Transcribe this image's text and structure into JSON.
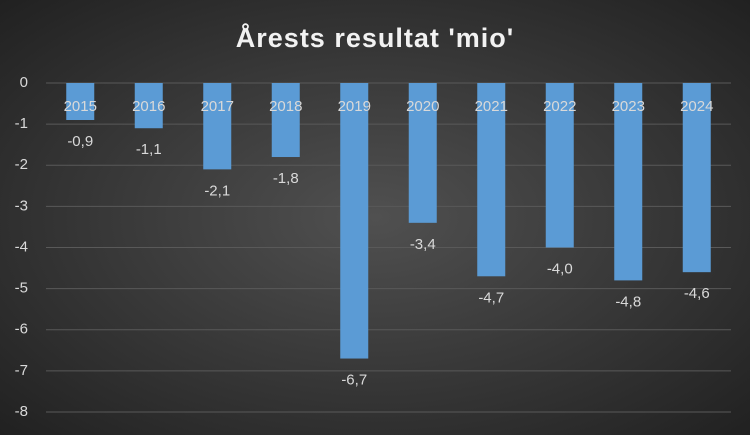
{
  "chart_data": {
    "type": "bar",
    "title": "Årests resultat 'mio'",
    "categories": [
      "2015",
      "2016",
      "2017",
      "2018",
      "2019",
      "2020",
      "2021",
      "2022",
      "2023",
      "2024"
    ],
    "values": [
      -0.9,
      -1.1,
      -2.1,
      -1.8,
      -6.7,
      -3.4,
      -4.7,
      -4.0,
      -4.8,
      -4.6
    ],
    "value_labels": [
      "-0,9",
      "-1,1",
      "-2,1",
      "-1,8",
      "-6,7",
      "-3,4",
      "-4,7",
      "-4,0",
      "-4,8",
      "-4,6"
    ],
    "color": "#5b9bd5",
    "ylim": [
      -8,
      0
    ],
    "yticks": [
      0,
      -1,
      -2,
      -3,
      -4,
      -5,
      -6,
      -7,
      -8
    ],
    "grid": true
  }
}
